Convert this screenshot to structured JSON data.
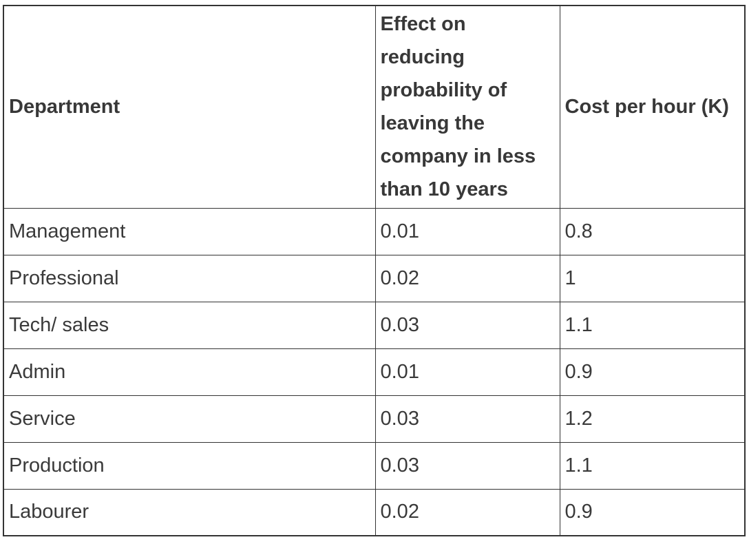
{
  "table": {
    "headers": [
      {
        "label": "Department"
      },
      {
        "label": "Effect on reducing probability of leaving the company in less than 10 years",
        "lines": [
          "Effect on",
          "reducing",
          "probability of",
          "leaving the",
          "company in less",
          "than 10 years"
        ]
      },
      {
        "label": "Cost per hour (K)"
      }
    ],
    "rows": [
      {
        "department": "Management",
        "effect": "0.01",
        "cost": "0.8"
      },
      {
        "department": "Professional",
        "effect": "0.02",
        "cost": "1"
      },
      {
        "department": "Tech/ sales",
        "effect": "0.03",
        "cost": "1.1"
      },
      {
        "department": "Admin",
        "effect": "0.01",
        "cost": "0.9"
      },
      {
        "department": "Service",
        "effect": "0.03",
        "cost": "1.2"
      },
      {
        "department": "Production",
        "effect": "0.03",
        "cost": "1.1"
      },
      {
        "department": "Labourer",
        "effect": "0.02",
        "cost": "0.9"
      }
    ]
  },
  "colors": {
    "border": "#333333",
    "text": "#3a3a3a",
    "background": "#ffffff"
  },
  "chart_data": {
    "type": "table",
    "columns": [
      "Department",
      "Effect on reducing probability of leaving the company in less than 10 years",
      "Cost per hour (K)"
    ],
    "rows": [
      [
        "Management",
        0.01,
        0.8
      ],
      [
        "Professional",
        0.02,
        1
      ],
      [
        "Tech/ sales",
        0.03,
        1.1
      ],
      [
        "Admin",
        0.01,
        0.9
      ],
      [
        "Service",
        0.03,
        1.2
      ],
      [
        "Production",
        0.03,
        1.1
      ],
      [
        "Labourer",
        0.02,
        0.9
      ]
    ]
  }
}
